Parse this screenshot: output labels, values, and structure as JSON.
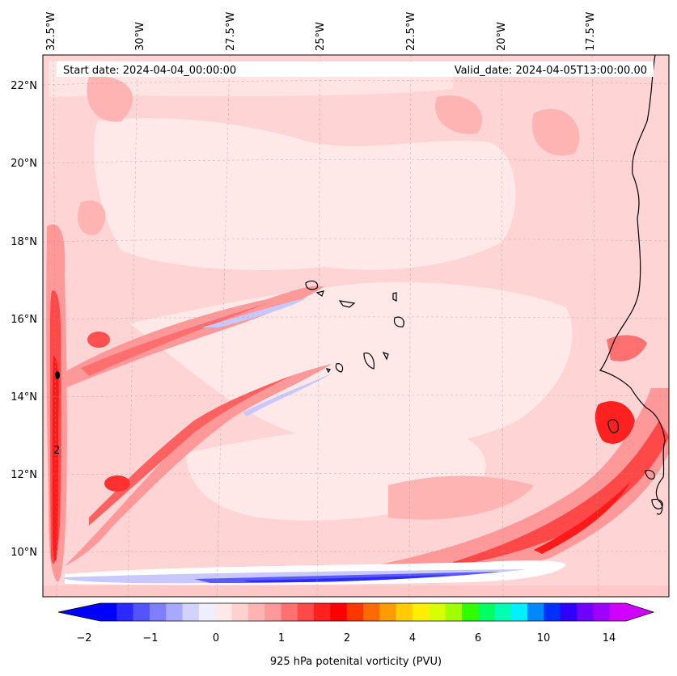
{
  "header": {
    "start_date": "Start date: 2024-04-04_00:00:00",
    "valid_date": "Valid_date: 2024-04-05T13:00:00.00"
  },
  "map": {
    "lon_labels": [
      "32.5°W",
      "30°W",
      "27.5°W",
      "25°W",
      "22.5°W",
      "20°W",
      "17.5°W"
    ],
    "lat_labels": [
      "22°N",
      "20°N",
      "18°N",
      "16°N",
      "14°N",
      "12°N",
      "10°N"
    ],
    "contour_label": "2"
  },
  "colorbar": {
    "label": "925 hPa potenital vorticity (PVU)",
    "ticks": [
      "−2",
      "−1",
      "0",
      "1",
      "2",
      "4",
      "6",
      "10",
      "14"
    ],
    "colors": [
      "#0000ff",
      "#2a2aff",
      "#5454ff",
      "#7e7eff",
      "#a8a8ff",
      "#d2d2ff",
      "#eeeeff",
      "#ffe8e8",
      "#ffd0d0",
      "#ffb4b4",
      "#ff9898",
      "#ff7070",
      "#ff4848",
      "#ff2020",
      "#ff0000",
      "#ff3600",
      "#ff6a00",
      "#ff9c00",
      "#ffcc00",
      "#ffee00",
      "#d8ff00",
      "#a0ff00",
      "#30ff00",
      "#00ff60",
      "#00ffb0",
      "#00f0ff",
      "#0088ff",
      "#0030ff",
      "#3000ff",
      "#7000ff",
      "#a000ff",
      "#d000ff"
    ]
  }
}
